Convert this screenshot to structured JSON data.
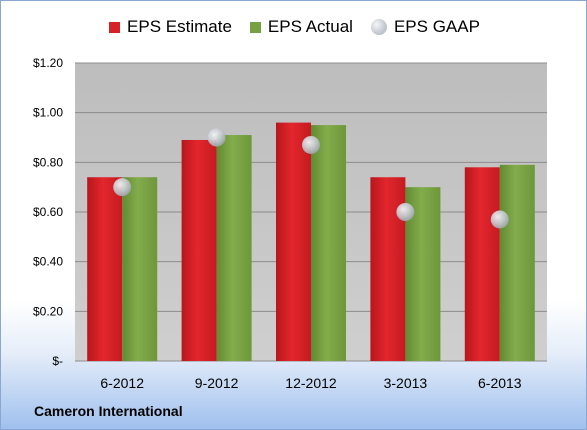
{
  "chart_data": {
    "type": "bar",
    "categories": [
      "6-2012",
      "9-2012",
      "12-2012",
      "3-2013",
      "6-2013"
    ],
    "series": [
      {
        "name": "EPS Estimate",
        "kind": "bar",
        "color": "#d62128",
        "values": [
          0.74,
          0.89,
          0.96,
          0.74,
          0.78
        ]
      },
      {
        "name": "EPS Actual",
        "kind": "bar",
        "color": "#77a042",
        "values": [
          0.74,
          0.91,
          0.95,
          0.7,
          0.79
        ]
      },
      {
        "name": "EPS GAAP",
        "kind": "marker",
        "color": "#b8bec6",
        "values": [
          0.7,
          0.9,
          0.87,
          0.6,
          0.57
        ]
      }
    ],
    "ylim": [
      0,
      1.2
    ],
    "yticks": [
      0,
      0.2,
      0.4,
      0.6,
      0.8,
      1.0,
      1.2
    ],
    "ytick_labels": [
      "$-",
      "$0.20",
      "$0.40",
      "$0.60",
      "$0.80",
      "$1.00",
      "$1.20"
    ],
    "grid": true,
    "legend_position": "top",
    "plot_background": "#c0c0c0"
  },
  "footer": {
    "company": "Cameron International"
  }
}
